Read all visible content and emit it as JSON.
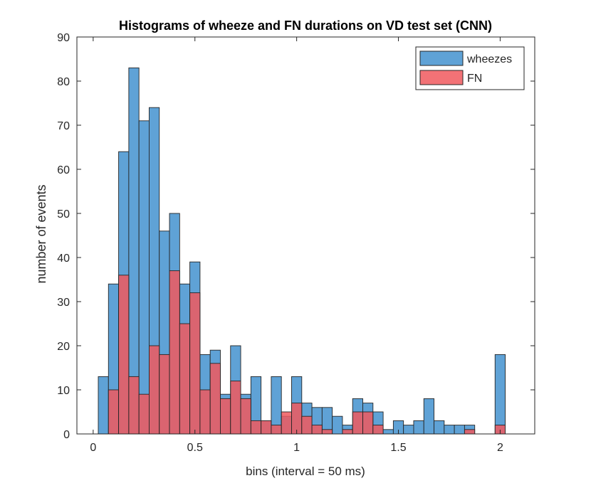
{
  "chart_data": {
    "type": "bar",
    "title": "Histograms of wheeze and FN durations on VD test set (CNN)",
    "xlabel": "bins (interval = 50 ms)",
    "ylabel": "number of events",
    "xlim": [
      -0.08,
      2.17
    ],
    "ylim": [
      0,
      90
    ],
    "bin_width": 0.05,
    "x_ticks": [
      0,
      0.5,
      1,
      1.5,
      2
    ],
    "x_tick_labels": [
      "0",
      "0.5",
      "1",
      "1.5",
      "2"
    ],
    "y_ticks": [
      0,
      10,
      20,
      30,
      40,
      50,
      60,
      70,
      80,
      90
    ],
    "y_tick_labels": [
      "0",
      "10",
      "20",
      "30",
      "40",
      "50",
      "60",
      "70",
      "80",
      "90"
    ],
    "grid": false,
    "legend_position": "top-right",
    "series": [
      {
        "name": "wheezes",
        "color": "#5fa2d6",
        "x": [
          0.05,
          0.1,
          0.15,
          0.2,
          0.25,
          0.3,
          0.35,
          0.4,
          0.45,
          0.5,
          0.55,
          0.6,
          0.65,
          0.7,
          0.75,
          0.8,
          0.85,
          0.9,
          0.95,
          1.0,
          1.05,
          1.1,
          1.15,
          1.2,
          1.25,
          1.3,
          1.35,
          1.4,
          1.45,
          1.5,
          1.55,
          1.6,
          1.65,
          1.7,
          1.75,
          1.8,
          1.85,
          1.9,
          1.95,
          2.0,
          2.05
        ],
        "values": [
          13,
          34,
          64,
          83,
          71,
          74,
          46,
          50,
          34,
          39,
          18,
          19,
          9,
          20,
          9,
          13,
          3,
          13,
          4,
          13,
          7,
          6,
          6,
          4,
          2,
          8,
          7,
          5,
          1,
          3,
          2,
          3,
          8,
          3,
          2,
          2,
          2,
          0,
          0,
          18,
          0
        ]
      },
      {
        "name": "FN",
        "color": "#f0595e",
        "x": [
          0.05,
          0.1,
          0.15,
          0.2,
          0.25,
          0.3,
          0.35,
          0.4,
          0.45,
          0.5,
          0.55,
          0.6,
          0.65,
          0.7,
          0.75,
          0.8,
          0.85,
          0.9,
          0.95,
          1.0,
          1.05,
          1.1,
          1.15,
          1.2,
          1.25,
          1.3,
          1.35,
          1.4,
          1.45,
          1.5,
          1.55,
          1.6,
          1.65,
          1.7,
          1.75,
          1.8,
          1.85,
          1.9,
          1.95,
          2.0,
          2.05
        ],
        "values": [
          0,
          10,
          36,
          13,
          9,
          20,
          18,
          37,
          25,
          32,
          10,
          16,
          8,
          12,
          8,
          3,
          3,
          2,
          5,
          7,
          4,
          2,
          1,
          0,
          1,
          5,
          5,
          2,
          0,
          0,
          0,
          0,
          0,
          0,
          0,
          0,
          1,
          0,
          0,
          2,
          0
        ]
      }
    ]
  }
}
